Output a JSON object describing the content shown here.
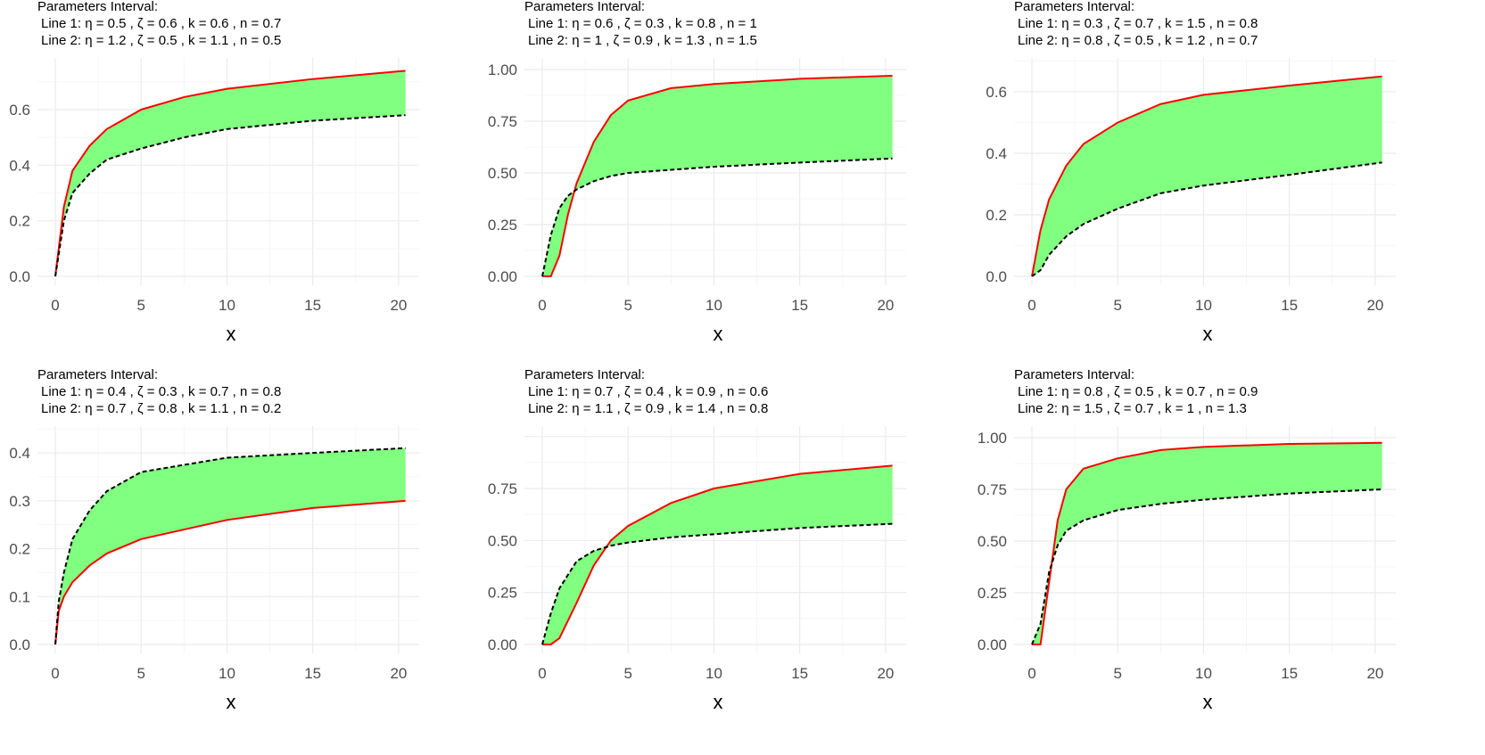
{
  "colors": {
    "upper_line": "#ff0000",
    "lower_line": "#000000",
    "fill": "#80ff80",
    "grid": "#ebebeb"
  },
  "chart_data": [
    {
      "type": "area",
      "title": [
        "Parameters Interval:",
        "Line 1: η = 0.5 , ζ = 0.6 , k = 0.6 , n = 0.7",
        "Line 2: η = 1.2 , ζ = 0.5 , k = 1.1 , n = 0.5"
      ],
      "xlabel": "x",
      "xlim": [
        -1.04,
        21.2
      ],
      "ylim": [
        -0.032,
        0.786
      ],
      "xticks": [
        0,
        5,
        10,
        15,
        20
      ],
      "xtick_labels": [
        "0",
        "5",
        "10",
        "15",
        "20"
      ],
      "yticks": [
        0,
        0.2,
        0.4,
        0.6
      ],
      "ytick_labels": [
        "0.0",
        "0.2",
        "0.4",
        "0.6"
      ],
      "series": [
        {
          "style": "solid-red",
          "x": [
            0,
            0.5,
            1,
            2,
            3,
            5,
            7.5,
            10,
            15,
            20.4
          ],
          "y": [
            0,
            0.25,
            0.38,
            0.47,
            0.53,
            0.6,
            0.645,
            0.675,
            0.71,
            0.74
          ]
        },
        {
          "style": "dashed-black",
          "x": [
            0,
            0.5,
            1,
            2,
            3,
            5,
            7.5,
            10,
            15,
            20.4
          ],
          "y": [
            0,
            0.2,
            0.3,
            0.37,
            0.42,
            0.46,
            0.5,
            0.53,
            0.56,
            0.58
          ]
        }
      ]
    },
    {
      "type": "area",
      "title": [
        "Parameters Interval:",
        "Line 1: η = 0.6 , ζ = 0.3 , k = 0.8 , n = 1",
        "Line 2: η = 1 , ζ = 0.9 , k = 1.3 , n = 1.5"
      ],
      "xlabel": "x",
      "xlim": [
        -1.04,
        21.2
      ],
      "ylim": [
        -0.043,
        1.056
      ],
      "xticks": [
        0,
        5,
        10,
        15,
        20
      ],
      "xtick_labels": [
        "0",
        "5",
        "10",
        "15",
        "20"
      ],
      "yticks": [
        0,
        0.25,
        0.5,
        0.75,
        1
      ],
      "ytick_labels": [
        "0.00",
        "0.25",
        "0.50",
        "0.75",
        "1.00"
      ],
      "series": [
        {
          "style": "solid-red",
          "x": [
            0,
            0.5,
            1,
            1.5,
            2,
            3,
            4,
            5,
            7.5,
            10,
            15,
            20.4
          ],
          "y": [
            0,
            0,
            0.1,
            0.3,
            0.45,
            0.65,
            0.78,
            0.85,
            0.91,
            0.93,
            0.955,
            0.97
          ]
        },
        {
          "style": "dashed-black",
          "x": [
            0,
            0.5,
            1,
            1.5,
            2,
            3,
            4,
            5,
            7.5,
            10,
            15,
            20.4
          ],
          "y": [
            0,
            0.2,
            0.33,
            0.39,
            0.42,
            0.46,
            0.485,
            0.5,
            0.515,
            0.53,
            0.55,
            0.57
          ]
        }
      ]
    },
    {
      "type": "area",
      "title": [
        "Parameters Interval:",
        "Line 1: η = 0.3 , ζ = 0.7 , k = 1.5 , n = 0.8",
        "Line 2: η = 0.8 , ζ = 0.5 , k = 1.2 , n = 0.7"
      ],
      "xlabel": "x",
      "xlim": [
        -1.04,
        21.2
      ],
      "ylim": [
        -0.029,
        0.71
      ],
      "xticks": [
        0,
        5,
        10,
        15,
        20
      ],
      "xtick_labels": [
        "0",
        "5",
        "10",
        "15",
        "20"
      ],
      "yticks": [
        0,
        0.2,
        0.4,
        0.6
      ],
      "ytick_labels": [
        "0.0",
        "0.2",
        "0.4",
        "0.6"
      ],
      "series": [
        {
          "style": "solid-red",
          "x": [
            0,
            0.5,
            1,
            2,
            3,
            5,
            7.5,
            10,
            15,
            20.4
          ],
          "y": [
            0,
            0.15,
            0.25,
            0.36,
            0.43,
            0.5,
            0.56,
            0.59,
            0.62,
            0.65
          ]
        },
        {
          "style": "dashed-black",
          "x": [
            0,
            0.5,
            1,
            2,
            3,
            5,
            7.5,
            10,
            15,
            20.4
          ],
          "y": [
            0,
            0.02,
            0.07,
            0.13,
            0.17,
            0.22,
            0.27,
            0.295,
            0.33,
            0.37
          ]
        }
      ]
    },
    {
      "type": "area",
      "title": [
        "Parameters Interval:",
        "Line 1: η = 0.4 , ζ = 0.3 , k = 0.7 , n = 0.8",
        "Line 2: η = 0.7 , ζ = 0.8 , k = 1.1 , n = 0.2"
      ],
      "xlabel": "x",
      "xlim": [
        -1.04,
        21.2
      ],
      "ylim": [
        -0.0186,
        0.456
      ],
      "xticks": [
        0,
        5,
        10,
        15,
        20
      ],
      "xtick_labels": [
        "0",
        "5",
        "10",
        "15",
        "20"
      ],
      "yticks": [
        0,
        0.1,
        0.2,
        0.3,
        0.4
      ],
      "ytick_labels": [
        "0.0",
        "0.1",
        "0.2",
        "0.3",
        "0.4"
      ],
      "series": [
        {
          "style": "solid-red",
          "x": [
            0,
            0.2,
            0.5,
            1,
            2,
            3,
            5,
            7.5,
            10,
            15,
            20.4
          ],
          "y": [
            0,
            0.07,
            0.1,
            0.13,
            0.165,
            0.19,
            0.22,
            0.24,
            0.26,
            0.285,
            0.3
          ]
        },
        {
          "style": "dashed-black",
          "x": [
            0,
            0.2,
            0.5,
            1,
            2,
            3,
            5,
            7.5,
            10,
            15,
            20.4
          ],
          "y": [
            0,
            0.09,
            0.15,
            0.22,
            0.28,
            0.32,
            0.36,
            0.375,
            0.39,
            0.4,
            0.41
          ]
        }
      ]
    },
    {
      "type": "area",
      "title": [
        "Parameters Interval:",
        "Line 1: η = 0.7 , ζ = 0.4 , k = 0.9 , n = 0.6",
        "Line 2: η = 1.1 , ζ = 0.9 , k = 1.4 , n = 0.8"
      ],
      "xlabel": "x",
      "xlim": [
        -1.04,
        21.2
      ],
      "ylim": [
        -0.043,
        1.05
      ],
      "xticks": [
        0,
        5,
        10,
        15,
        20
      ],
      "xtick_labels": [
        "0",
        "5",
        "10",
        "15",
        "20"
      ],
      "yticks": [
        0,
        0.25,
        0.5,
        0.75
      ],
      "ytick_labels": [
        "0.00",
        "0.25",
        "0.50",
        "0.75"
      ],
      "series": [
        {
          "style": "solid-red",
          "x": [
            0,
            0.5,
            1,
            2,
            3,
            4,
            5,
            7.5,
            10,
            15,
            20.4
          ],
          "y": [
            0,
            0,
            0.03,
            0.2,
            0.38,
            0.5,
            0.57,
            0.68,
            0.75,
            0.82,
            0.86
          ]
        },
        {
          "style": "dashed-black",
          "x": [
            0,
            0.5,
            1,
            2,
            3,
            4,
            5,
            7.5,
            10,
            15,
            20.4
          ],
          "y": [
            0,
            0.15,
            0.27,
            0.4,
            0.45,
            0.475,
            0.49,
            0.515,
            0.53,
            0.56,
            0.58
          ]
        }
      ]
    },
    {
      "type": "area",
      "title": [
        "Parameters Interval:",
        "Line 1: η = 0.8 , ζ = 0.5 , k = 0.7 , n = 0.9",
        "Line 2: η = 1.5 , ζ = 0.7 , k = 1 , n = 1.3"
      ],
      "xlabel": "x",
      "xlim": [
        -1.04,
        21.2
      ],
      "ylim": [
        -0.043,
        1.056
      ],
      "xticks": [
        0,
        5,
        10,
        15,
        20
      ],
      "xtick_labels": [
        "0",
        "5",
        "10",
        "15",
        "20"
      ],
      "yticks": [
        0,
        0.25,
        0.5,
        0.75,
        1
      ],
      "ytick_labels": [
        "0.00",
        "0.25",
        "0.50",
        "0.75",
        "1.00"
      ],
      "series": [
        {
          "style": "solid-red",
          "x": [
            0,
            0.5,
            1,
            1.5,
            2,
            3,
            5,
            7.5,
            10,
            15,
            20.4
          ],
          "y": [
            0,
            0,
            0.3,
            0.6,
            0.75,
            0.85,
            0.9,
            0.94,
            0.955,
            0.97,
            0.975
          ]
        },
        {
          "style": "dashed-black",
          "x": [
            0,
            0.5,
            1,
            1.5,
            2,
            3,
            5,
            7.5,
            10,
            15,
            20.4
          ],
          "y": [
            0,
            0.1,
            0.35,
            0.48,
            0.55,
            0.6,
            0.65,
            0.68,
            0.7,
            0.73,
            0.75
          ]
        }
      ]
    }
  ]
}
